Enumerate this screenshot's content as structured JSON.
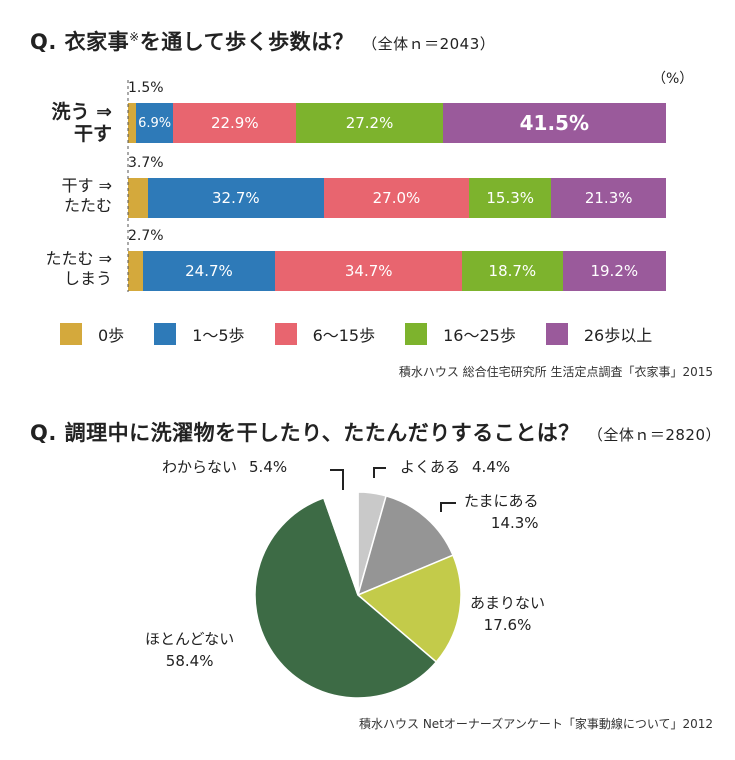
{
  "q1": {
    "title": "Q. 衣家事",
    "note_mark": "※",
    "title_rest": "を通して歩く歩数は？",
    "subtitle": "（全体ｎ＝2043）",
    "unit": "（%）",
    "source": "積水ハウス 総合住宅研究所 生活定点調査「衣家事」2015"
  },
  "q2": {
    "title": "Q. 調理中に洗濯物を干したり、たたんだりすることは？",
    "subtitle": "（全体ｎ＝2820）",
    "source": "積水ハウス Netオーナーズアンケート「家事動線について」2012"
  },
  "chart_data": [
    {
      "type": "bar",
      "orientation": "horizontal",
      "stacked": true,
      "categories": [
        "洗う ⇒ 干す",
        "干す ⇒ たたむ",
        "たたむ ⇒ しまう"
      ],
      "category_lines": [
        [
          "洗う ⇒",
          "干す"
        ],
        [
          "干す ⇒",
          "たたむ"
        ],
        [
          "たたむ ⇒",
          "しまう"
        ]
      ],
      "series": [
        {
          "name": "0歩",
          "color": "#d4a93c",
          "values": [
            1.5,
            3.7,
            2.7
          ],
          "labels": [
            "1.5%",
            "3.7%",
            "2.7%"
          ]
        },
        {
          "name": "1〜5歩",
          "color": "#2e7ab8",
          "values": [
            6.9,
            32.7,
            24.7
          ],
          "labels": [
            "6.9%",
            "32.7%",
            "24.7%"
          ]
        },
        {
          "name": "6〜15歩",
          "color": "#e8656f",
          "values": [
            22.9,
            27.0,
            34.7
          ],
          "labels": [
            "22.9%",
            "27.0%",
            "34.7%"
          ]
        },
        {
          "name": "16〜25歩",
          "color": "#7db32d",
          "values": [
            27.2,
            15.3,
            18.7
          ],
          "labels": [
            "27.2%",
            "15.3%",
            "18.7%"
          ]
        },
        {
          "name": "26歩以上",
          "color": "#9a5a9b",
          "values": [
            41.5,
            21.3,
            19.2
          ],
          "labels": [
            "41.5%",
            "21.3%",
            "19.2%"
          ]
        }
      ],
      "xlim": [
        0,
        100
      ],
      "legend": "bottom"
    },
    {
      "type": "pie",
      "slices": [
        {
          "label": "よくある",
          "value": 4.4,
          "pct": "4.4%",
          "color": "#c9c9c9"
        },
        {
          "label": "たまにある",
          "value": 14.3,
          "pct": "14.3%",
          "color": "#959595"
        },
        {
          "label": "あまりない",
          "value": 17.6,
          "pct": "17.6%",
          "color": "#c3cb4a"
        },
        {
          "label": "ほとんどない",
          "value": 58.4,
          "pct": "58.4%",
          "color": "#3d6b45"
        },
        {
          "label": "わからない",
          "value": 5.4,
          "pct": "5.4%",
          "color": "#ffffff"
        }
      ]
    }
  ]
}
